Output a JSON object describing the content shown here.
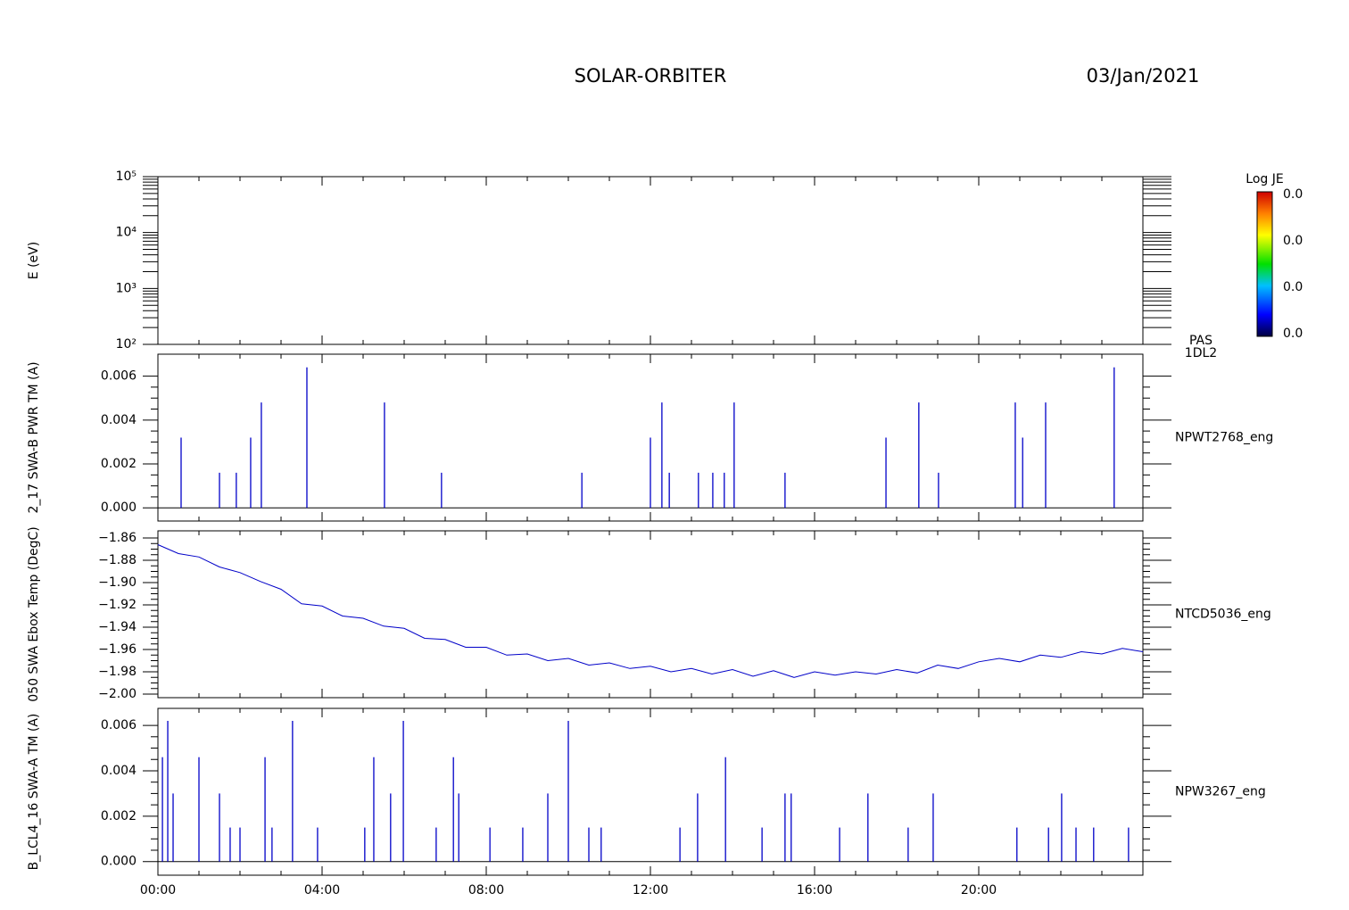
{
  "header": {
    "title": "SOLAR-ORBITER",
    "date": "03/Jan/2021"
  },
  "chart_data": [
    {
      "type": "heatmap",
      "y_label": "E (eV)",
      "log_y": true,
      "ylim": [
        100,
        100000
      ],
      "yticks": [
        {
          "value": 100,
          "label": "10²"
        },
        {
          "value": 1000,
          "label": "10³"
        },
        {
          "value": 10000,
          "label": "10⁴"
        },
        {
          "value": 100000,
          "label": "10⁵"
        }
      ],
      "xlim": [
        0,
        24
      ],
      "colorbar": {
        "label": "Log JE",
        "ticks": [
          "0.0",
          "0.0",
          "0.0",
          "0.0"
        ]
      },
      "annotation": [
        "PAS",
        "1DL2"
      ]
    },
    {
      "type": "stem",
      "y_label": "2_17 SWA-B PWR TM (A)",
      "xlim": [
        0,
        24
      ],
      "ylim": [
        -0.0006,
        0.007
      ],
      "yticks": [
        {
          "value": 0,
          "label": "0.000"
        },
        {
          "value": 0.002,
          "label": "0.002"
        },
        {
          "value": 0.004,
          "label": "0.004"
        },
        {
          "value": 0.006,
          "label": "0.006"
        }
      ],
      "series": [
        {
          "name": "NPWT2768_eng",
          "color": "#0000c8",
          "x": [
            0.565,
            1.5,
            1.91,
            2.26,
            2.52,
            3.63,
            5.52,
            6.91,
            10.33,
            12.0,
            12.28,
            12.46,
            13.17,
            13.52,
            13.8,
            14.04,
            15.28,
            17.74,
            18.54,
            19.02,
            20.89,
            21.07,
            21.63,
            23.3
          ],
          "values": [
            0.0032,
            0.0016,
            0.0016,
            0.0032,
            0.0048,
            0.0064,
            0.0048,
            0.0016,
            0.0016,
            0.0032,
            0.0048,
            0.0016,
            0.0016,
            0.0016,
            0.0016,
            0.0048,
            0.0016,
            0.0032,
            0.0048,
            0.0016,
            0.0048,
            0.0032,
            0.0048,
            0.0064
          ]
        }
      ]
    },
    {
      "type": "line",
      "y_label": "050 SWA Ebox Temp (DegC)",
      "xlim": [
        0,
        24
      ],
      "ylim": [
        -2.0032,
        -1.8536
      ],
      "yticks": [
        {
          "value": -1.86,
          "label": "−1.86"
        },
        {
          "value": -1.88,
          "label": "−1.88"
        },
        {
          "value": -1.9,
          "label": "−1.90"
        },
        {
          "value": -1.92,
          "label": "−1.92"
        },
        {
          "value": -1.94,
          "label": "−1.94"
        },
        {
          "value": -1.96,
          "label": "−1.96"
        },
        {
          "value": -1.98,
          "label": "−1.98"
        },
        {
          "value": -2.0,
          "label": "−2.00"
        }
      ],
      "series": [
        {
          "name": "NTCD5036_eng",
          "color": "#0000c8",
          "x": [
            0,
            0.5,
            1,
            1.5,
            2,
            2.5,
            3,
            3.5,
            4,
            4.5,
            5,
            5.5,
            6,
            6.5,
            7,
            7.5,
            8,
            8.5,
            9,
            9.5,
            10,
            10.5,
            11,
            11.5,
            12,
            12.5,
            13,
            13.5,
            14,
            14.5,
            15,
            15.5,
            16,
            16.5,
            17,
            17.5,
            18,
            18.5,
            19,
            19.5,
            20,
            20.5,
            21,
            21.5,
            22,
            22.5,
            23,
            23.5,
            24
          ],
          "values": [
            -1.866,
            -1.874,
            -1.877,
            -1.886,
            -1.891,
            -1.899,
            -1.906,
            -1.919,
            -1.921,
            -1.93,
            -1.932,
            -1.939,
            -1.941,
            -1.95,
            -1.951,
            -1.958,
            -1.958,
            -1.965,
            -1.964,
            -1.97,
            -1.968,
            -1.974,
            -1.972,
            -1.977,
            -1.975,
            -1.98,
            -1.977,
            -1.982,
            -1.978,
            -1.984,
            -1.979,
            -1.985,
            -1.98,
            -1.983,
            -1.98,
            -1.982,
            -1.978,
            -1.981,
            -1.974,
            -1.977,
            -1.971,
            -1.968,
            -1.971,
            -1.965,
            -1.967,
            -1.962,
            -1.964,
            -1.959,
            -1.962
          ]
        }
      ]
    },
    {
      "type": "stem",
      "y_label": "B_LCL4_16 SWA-A TM (A)",
      "xlim": [
        0,
        24
      ],
      "ylim": [
        -0.0006,
        0.00675
      ],
      "yticks": [
        {
          "value": 0,
          "label": "0.000"
        },
        {
          "value": 0.002,
          "label": "0.002"
        },
        {
          "value": 0.004,
          "label": "0.004"
        },
        {
          "value": 0.006,
          "label": "0.006"
        }
      ],
      "xticks": [
        {
          "value": 0,
          "label": "00:00"
        },
        {
          "value": 4,
          "label": "04:00"
        },
        {
          "value": 8,
          "label": "08:00"
        },
        {
          "value": 12,
          "label": "12:00"
        },
        {
          "value": 16,
          "label": "16:00"
        },
        {
          "value": 20,
          "label": "20:00"
        }
      ],
      "series": [
        {
          "name": "NPW3267_eng",
          "color": "#0000c8",
          "x": [
            0.11,
            0.24,
            0.37,
            1.0,
            1.5,
            1.76,
            2.0,
            2.61,
            2.78,
            3.28,
            3.89,
            5.04,
            5.26,
            5.67,
            5.98,
            6.78,
            7.2,
            7.33,
            8.09,
            8.89,
            9.5,
            10.0,
            10.5,
            10.8,
            12.72,
            13.15,
            13.83,
            14.72,
            15.28,
            15.43,
            16.61,
            17.3,
            18.28,
            18.89,
            20.93,
            21.7,
            22.02,
            22.37,
            22.8,
            23.65
          ],
          "values": [
            0.0046,
            0.0062,
            0.003,
            0.0046,
            0.003,
            0.0015,
            0.0015,
            0.0046,
            0.0015,
            0.0062,
            0.0015,
            0.0015,
            0.0046,
            0.003,
            0.0062,
            0.0015,
            0.0046,
            0.003,
            0.0015,
            0.0015,
            0.003,
            0.0062,
            0.0015,
            0.0015,
            0.0015,
            0.003,
            0.0046,
            0.0015,
            0.003,
            0.003,
            0.0015,
            0.003,
            0.0015,
            0.003,
            0.0015,
            0.0015,
            0.003,
            0.0015,
            0.0015,
            0.0015
          ]
        }
      ]
    }
  ]
}
